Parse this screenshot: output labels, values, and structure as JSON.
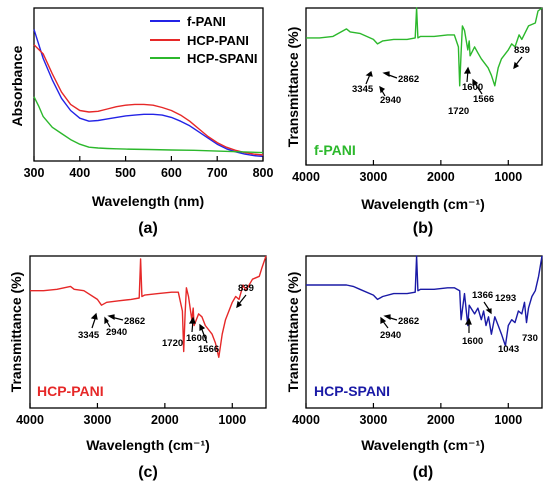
{
  "figure": {
    "colors": {
      "blue": "#2323e6",
      "red": "#e62828",
      "green": "#2cb82c",
      "dkblue": "#1a1aa6"
    }
  },
  "chart_data": [
    {
      "type": "line",
      "panel_label": "(a)",
      "xlabel": "Wavelength (nm)",
      "ylabel": "Absorbance",
      "xlim": [
        300,
        800
      ],
      "xticks": [
        300,
        400,
        500,
        600,
        700,
        800
      ],
      "yticks": [],
      "grid": false,
      "legend": "top-right",
      "series": [
        {
          "name": "f-PANI",
          "color": "#2323e6",
          "x": [
            300,
            320,
            340,
            360,
            380,
            400,
            420,
            440,
            460,
            480,
            500,
            520,
            540,
            560,
            580,
            600,
            620,
            640,
            660,
            680,
            700,
            720,
            740,
            760,
            780,
            800
          ],
          "y": [
            0.86,
            0.67,
            0.53,
            0.41,
            0.33,
            0.28,
            0.26,
            0.265,
            0.275,
            0.285,
            0.295,
            0.3,
            0.305,
            0.305,
            0.3,
            0.285,
            0.26,
            0.23,
            0.19,
            0.15,
            0.11,
            0.08,
            0.06,
            0.045,
            0.035,
            0.03
          ]
        },
        {
          "name": "HCP-PANI",
          "color": "#e62828",
          "x": [
            300,
            320,
            340,
            360,
            380,
            400,
            420,
            440,
            460,
            480,
            500,
            520,
            540,
            560,
            580,
            600,
            620,
            640,
            660,
            680,
            700,
            720,
            740,
            760,
            780,
            800
          ],
          "y": [
            0.76,
            0.7,
            0.57,
            0.45,
            0.37,
            0.33,
            0.32,
            0.325,
            0.34,
            0.355,
            0.365,
            0.37,
            0.37,
            0.365,
            0.35,
            0.33,
            0.3,
            0.26,
            0.21,
            0.16,
            0.12,
            0.09,
            0.07,
            0.055,
            0.045,
            0.04
          ]
        },
        {
          "name": "HCP-SPANI",
          "color": "#2cb82c",
          "x": [
            300,
            310,
            320,
            340,
            360,
            380,
            400,
            420,
            440,
            460,
            480,
            500,
            550,
            600,
            650,
            700,
            750,
            800
          ],
          "y": [
            0.42,
            0.36,
            0.29,
            0.22,
            0.18,
            0.14,
            0.11,
            0.09,
            0.085,
            0.082,
            0.08,
            0.078,
            0.075,
            0.072,
            0.07,
            0.065,
            0.06,
            0.055
          ]
        }
      ]
    },
    {
      "type": "line",
      "panel_label": "(b)",
      "sample_label": "f-PANI",
      "xlabel": "Wavelength (cm⁻¹)",
      "ylabel": "Transmittance (%)",
      "xlim": [
        4000,
        500
      ],
      "xticks": [
        4000,
        3000,
        2000,
        1000
      ],
      "grid": false,
      "series": [
        {
          "name": "f-PANI",
          "color": "#2cb82c",
          "x": [
            4000,
            3800,
            3600,
            3400,
            3345,
            3200,
            3000,
            2940,
            2862,
            2700,
            2500,
            2380,
            2360,
            2340,
            2300,
            2100,
            1900,
            1800,
            1740,
            1720,
            1700,
            1680,
            1650,
            1600,
            1580,
            1566,
            1500,
            1450,
            1400,
            1300,
            1250,
            1200,
            1150,
            1100,
            1000,
            950,
            900,
            839,
            800,
            700,
            600,
            560,
            500
          ],
          "y": [
            0.8,
            0.8,
            0.81,
            0.86,
            0.84,
            0.83,
            0.79,
            0.76,
            0.78,
            0.79,
            0.79,
            0.8,
            1.0,
            0.8,
            0.81,
            0.81,
            0.82,
            0.82,
            0.74,
            0.48,
            0.7,
            0.88,
            0.85,
            0.72,
            0.78,
            0.68,
            0.74,
            0.7,
            0.66,
            0.6,
            0.55,
            0.48,
            0.6,
            0.66,
            0.72,
            0.76,
            0.74,
            0.82,
            0.79,
            0.88,
            0.9,
            0.98,
            1.0
          ]
        }
      ],
      "annotations": [
        "3345",
        "2940",
        "2862",
        "1720",
        "1600",
        "1566",
        "839"
      ]
    },
    {
      "type": "line",
      "panel_label": "(c)",
      "sample_label": "HCP-PANI",
      "xlabel": "Wavelength (cm⁻¹)",
      "ylabel": "Transmittance (%)",
      "xlim": [
        4000,
        500
      ],
      "xticks": [
        4000,
        3000,
        2000,
        1000
      ],
      "grid": false,
      "series": [
        {
          "name": "HCP-PANI",
          "color": "#e62828",
          "x": [
            4000,
            3800,
            3600,
            3400,
            3345,
            3200,
            3000,
            2940,
            2862,
            2700,
            2500,
            2380,
            2360,
            2340,
            2300,
            2100,
            1900,
            1800,
            1740,
            1720,
            1700,
            1680,
            1650,
            1600,
            1580,
            1566,
            1500,
            1450,
            1400,
            1300,
            1250,
            1200,
            1150,
            1100,
            1000,
            950,
            900,
            839,
            800,
            700,
            600,
            560,
            500
          ],
          "y": [
            0.76,
            0.76,
            0.77,
            0.79,
            0.77,
            0.76,
            0.7,
            0.66,
            0.68,
            0.69,
            0.7,
            0.71,
            0.98,
            0.72,
            0.73,
            0.74,
            0.75,
            0.75,
            0.62,
            0.34,
            0.6,
            0.78,
            0.72,
            0.56,
            0.64,
            0.52,
            0.6,
            0.58,
            0.52,
            0.46,
            0.4,
            0.3,
            0.46,
            0.56,
            0.68,
            0.72,
            0.7,
            0.8,
            0.76,
            0.84,
            0.86,
            0.92,
            1.0
          ]
        }
      ],
      "annotations": [
        "3345",
        "2940",
        "2862",
        "1720",
        "1600",
        "1566",
        "839"
      ]
    },
    {
      "type": "line",
      "panel_label": "(d)",
      "sample_label": "HCP-SPANI",
      "xlabel": "Wavelength (cm⁻¹)",
      "ylabel": "Transmittance (%)",
      "xlim": [
        4000,
        500
      ],
      "xticks": [
        4000,
        3000,
        2000,
        1000
      ],
      "grid": false,
      "series": [
        {
          "name": "HCP-SPANI",
          "color": "#1a1aa6",
          "x": [
            4000,
            3800,
            3600,
            3400,
            3300,
            3200,
            3000,
            2940,
            2862,
            2700,
            2500,
            2380,
            2360,
            2340,
            2300,
            2100,
            1900,
            1800,
            1720,
            1700,
            1650,
            1600,
            1580,
            1500,
            1450,
            1400,
            1366,
            1330,
            1293,
            1250,
            1200,
            1150,
            1100,
            1043,
            1000,
            950,
            900,
            850,
            800,
            760,
            730,
            700,
            650,
            600,
            550,
            500
          ],
          "y": [
            0.8,
            0.8,
            0.8,
            0.8,
            0.79,
            0.77,
            0.73,
            0.7,
            0.72,
            0.74,
            0.74,
            0.75,
            1.0,
            0.76,
            0.77,
            0.77,
            0.78,
            0.78,
            0.76,
            0.56,
            0.74,
            0.52,
            0.66,
            0.6,
            0.64,
            0.56,
            0.62,
            0.52,
            0.58,
            0.46,
            0.58,
            0.52,
            0.46,
            0.38,
            0.52,
            0.56,
            0.54,
            0.62,
            0.6,
            0.68,
            0.54,
            0.64,
            0.72,
            0.76,
            0.86,
            1.0
          ]
        }
      ],
      "annotations": [
        "2940",
        "2862",
        "1600",
        "1366",
        "1293",
        "1043",
        "730"
      ]
    }
  ]
}
